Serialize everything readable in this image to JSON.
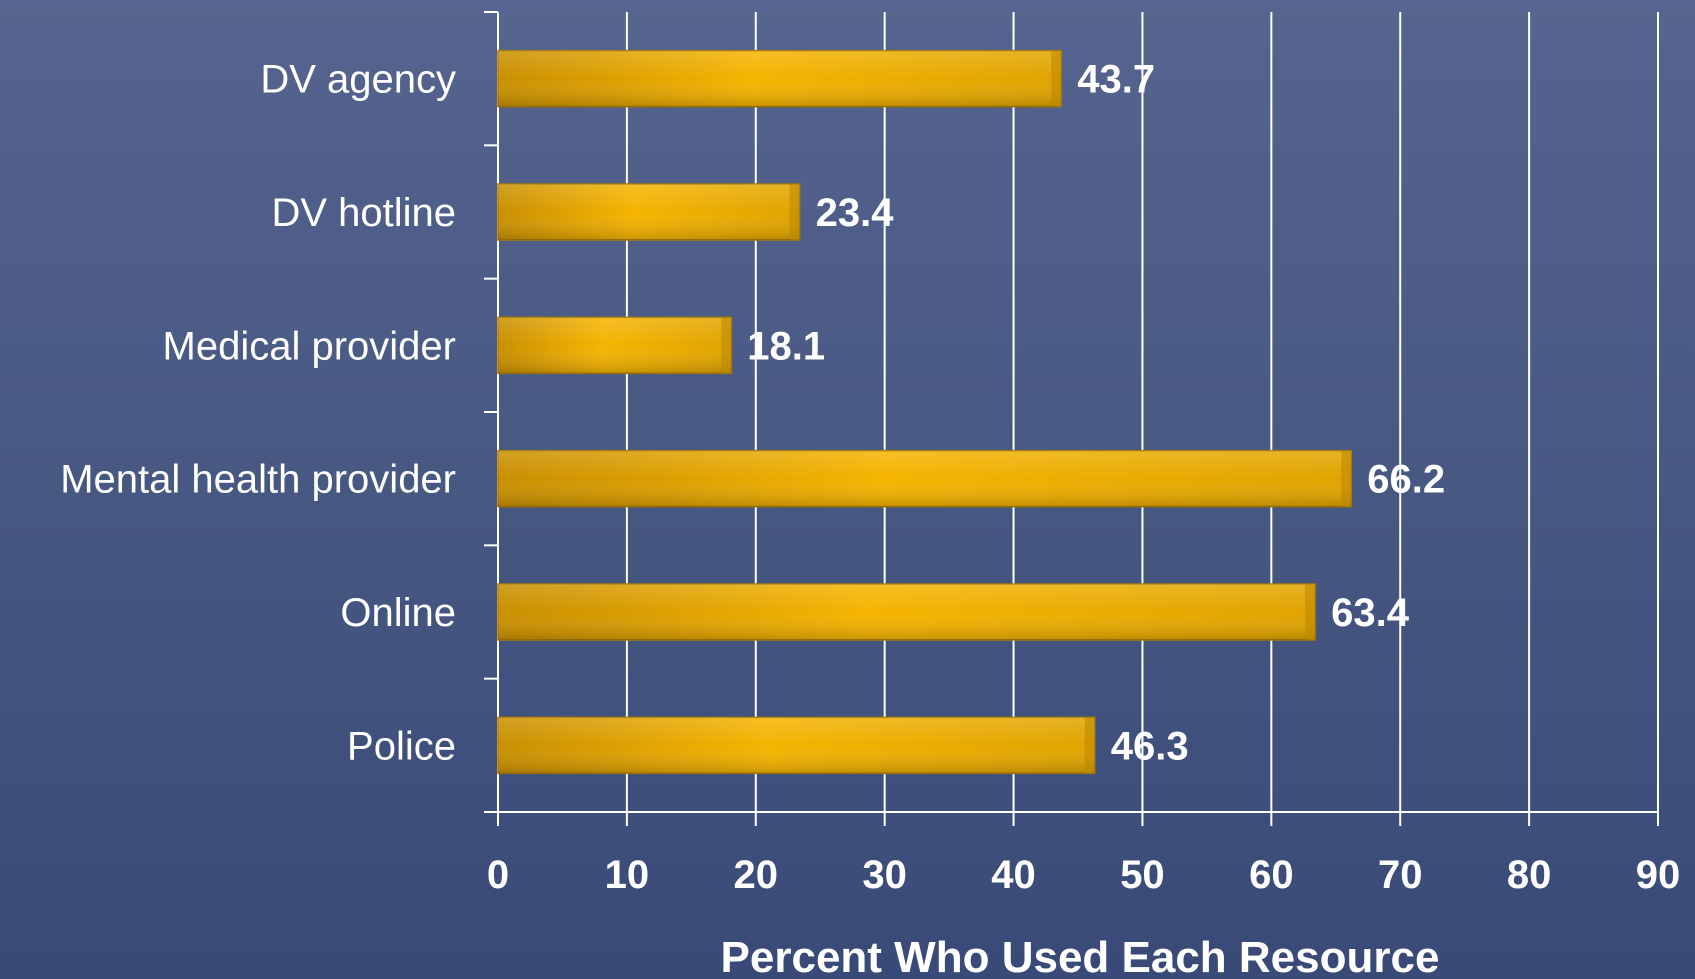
{
  "chart_data": {
    "type": "bar",
    "orientation": "horizontal",
    "categories": [
      "DV agency",
      "DV hotline",
      "Medical provider",
      "Mental health provider",
      "Online",
      "Police"
    ],
    "values": [
      43.7,
      23.4,
      18.1,
      66.2,
      63.4,
      46.3
    ],
    "value_labels": [
      "43.7",
      "23.4",
      "18.1",
      "66.2",
      "63.4",
      "46.3"
    ],
    "xlabel": "Percent Who Used Each Resource",
    "ylabel": "",
    "xlim": [
      0,
      90
    ],
    "xticks": [
      0,
      10,
      20,
      30,
      40,
      50,
      60,
      70,
      80,
      90
    ],
    "xtick_labels": [
      "0",
      "10",
      "20",
      "30",
      "40",
      "50",
      "60",
      "70",
      "80",
      "90"
    ],
    "grid": "vertical",
    "colors": {
      "bar": "#f0b000",
      "bar_dark": "#c98f00",
      "grid": "#ffffff",
      "text": "#ffffff",
      "background_top": "#56648f",
      "background_bottom": "#3a4a78"
    }
  }
}
